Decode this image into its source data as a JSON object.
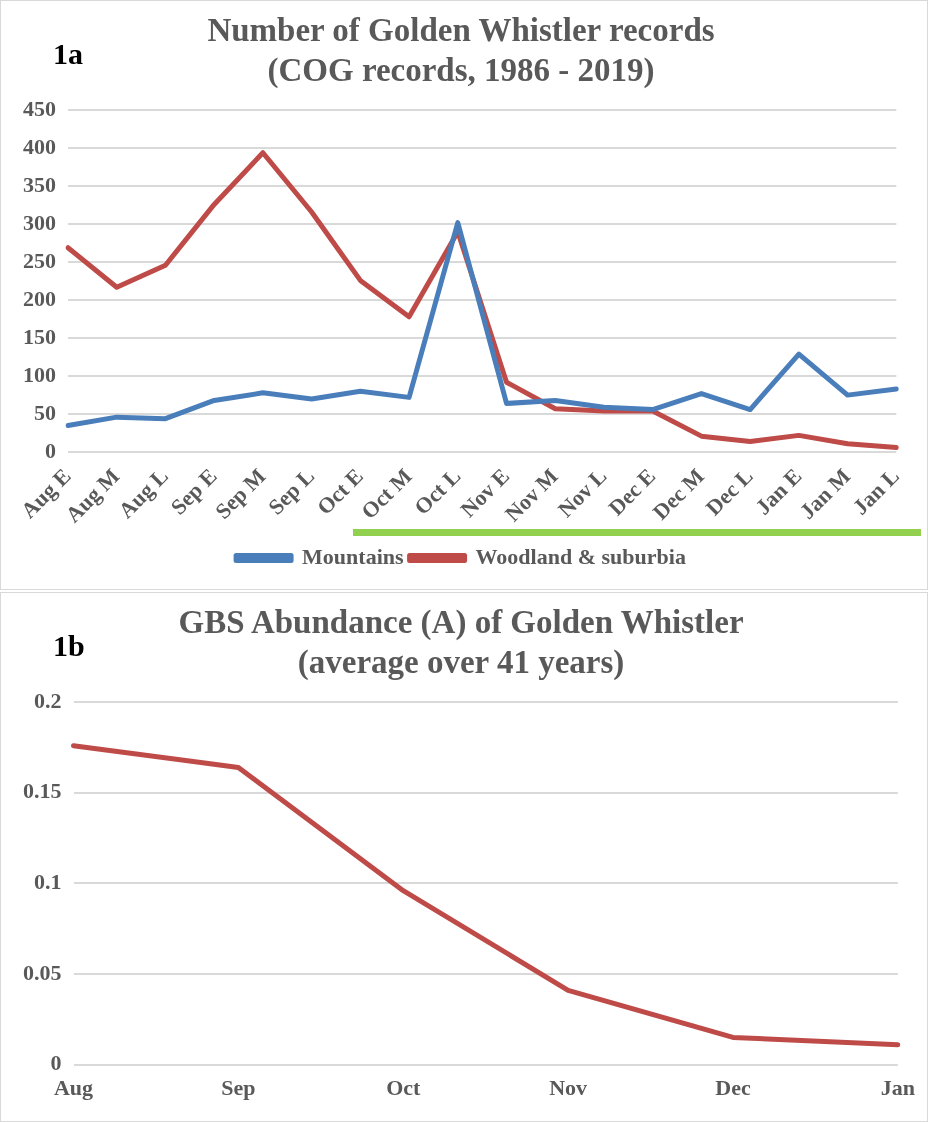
{
  "chart_data": [
    {
      "type": "line",
      "title": [
        "Number of Golden Whistler records",
        "(COG records, 1986 - 2019)"
      ],
      "annotations": [
        "1a"
      ],
      "categories": [
        "Aug E",
        "Aug M",
        "Aug L",
        "Sep E",
        "Sep M",
        "Sep L",
        "Oct E",
        "Oct M",
        "Oct L",
        "Nov E",
        "Nov M",
        "Nov L",
        "Dec E",
        "Dec M",
        "Dec L",
        "Jan E",
        "Jan M",
        "Jan L"
      ],
      "series": [
        {
          "name": "Mountains",
          "color": "#4a7ebb",
          "values": [
            35,
            46,
            44,
            68,
            78,
            70,
            80,
            72,
            302,
            64,
            68,
            59,
            56,
            77,
            56,
            129,
            75,
            83
          ]
        },
        {
          "name": "Woodland & suburbia",
          "color": "#be4b48",
          "values": [
            269,
            217,
            246,
            326,
            394,
            316,
            226,
            178,
            290,
            92,
            57,
            54,
            54,
            21,
            14,
            22,
            11,
            6
          ]
        }
      ],
      "ylim": [
        0,
        450
      ],
      "yticks": [
        0,
        50,
        100,
        150,
        200,
        250,
        300,
        350,
        400,
        450
      ],
      "grid": "y",
      "legend": "bottom",
      "marker": "none"
    },
    {
      "type": "line",
      "title": [
        "GBS Abundance (A) of Golden Whistler",
        "(average over 41 years)"
      ],
      "annotations": [
        "1b"
      ],
      "categories": [
        "Aug",
        "Sep",
        "Oct",
        "Nov",
        "Dec",
        "Jan"
      ],
      "series": [
        {
          "color": "#be4b48",
          "values": [
            0.176,
            0.164,
            0.096,
            0.041,
            0.015,
            0.011
          ]
        }
      ],
      "ylim": [
        0,
        0.2
      ],
      "yticks": [
        0,
        0.05,
        0.1,
        0.15,
        0.2
      ],
      "grid": "y",
      "marker": "none"
    }
  ]
}
